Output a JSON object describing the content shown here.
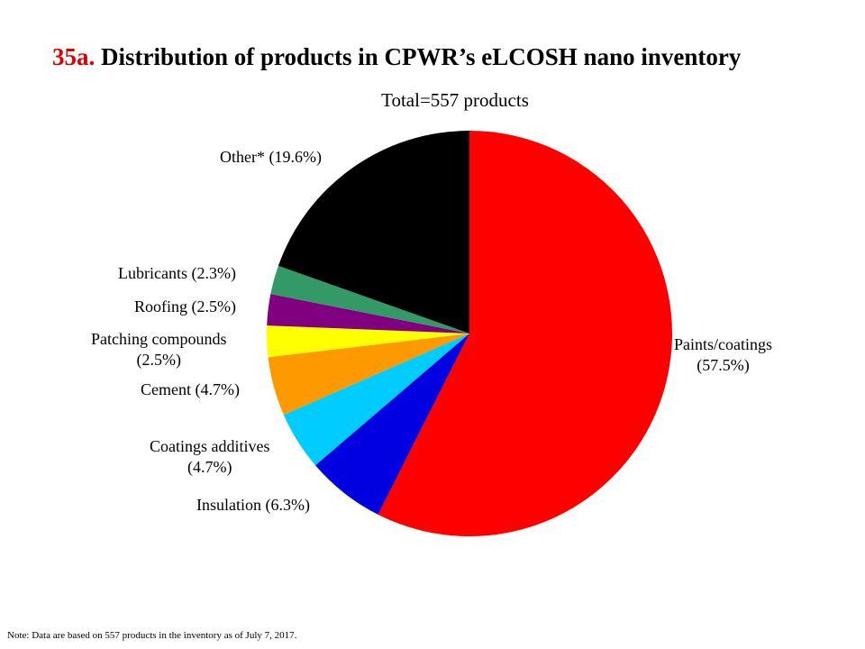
{
  "title": {
    "number": "35a.",
    "text": "Distribution of products in CPWR’s eLCOSH nano inventory"
  },
  "note": "Note: Data are based on 557 products in the inventory as of July 7, 2017.",
  "chart_data": {
    "type": "pie",
    "title": "35a. Distribution of products in CPWR’s eLCOSH nano inventory",
    "subtitle": "Total=557 products",
    "start": "12 o'clock, clockwise",
    "slices": [
      {
        "name": "Paints/coatings",
        "value": 57.5,
        "color": "#ff0000",
        "label": [
          "Paints/coatings",
          "(57.5%)"
        ]
      },
      {
        "name": "Insulation",
        "value": 6.3,
        "color": "#0000e0",
        "label": [
          "Insulation  (6.3%)"
        ]
      },
      {
        "name": "Coatings additives",
        "value": 4.7,
        "color": "#00ccff",
        "label": [
          "Coatings additives",
          "(4.7%)"
        ]
      },
      {
        "name": "Cement",
        "value": 4.7,
        "color": "#ff9900",
        "label": [
          "Cement  (4.7%)"
        ]
      },
      {
        "name": "Patching compounds",
        "value": 2.5,
        "color": "#ffff00",
        "label": [
          "Patching  compounds",
          "(2.5%)"
        ]
      },
      {
        "name": "Roofing",
        "value": 2.5,
        "color": "#800080",
        "label": [
          "Roofing  (2.5%)"
        ]
      },
      {
        "name": "Lubricants",
        "value": 2.3,
        "color": "#339966",
        "label": [
          "Lubricants  (2.3%)"
        ]
      },
      {
        "name": "Other*",
        "value": 19.6,
        "color": "#000000",
        "label": [
          "Other*  (19.6%)"
        ]
      }
    ]
  }
}
